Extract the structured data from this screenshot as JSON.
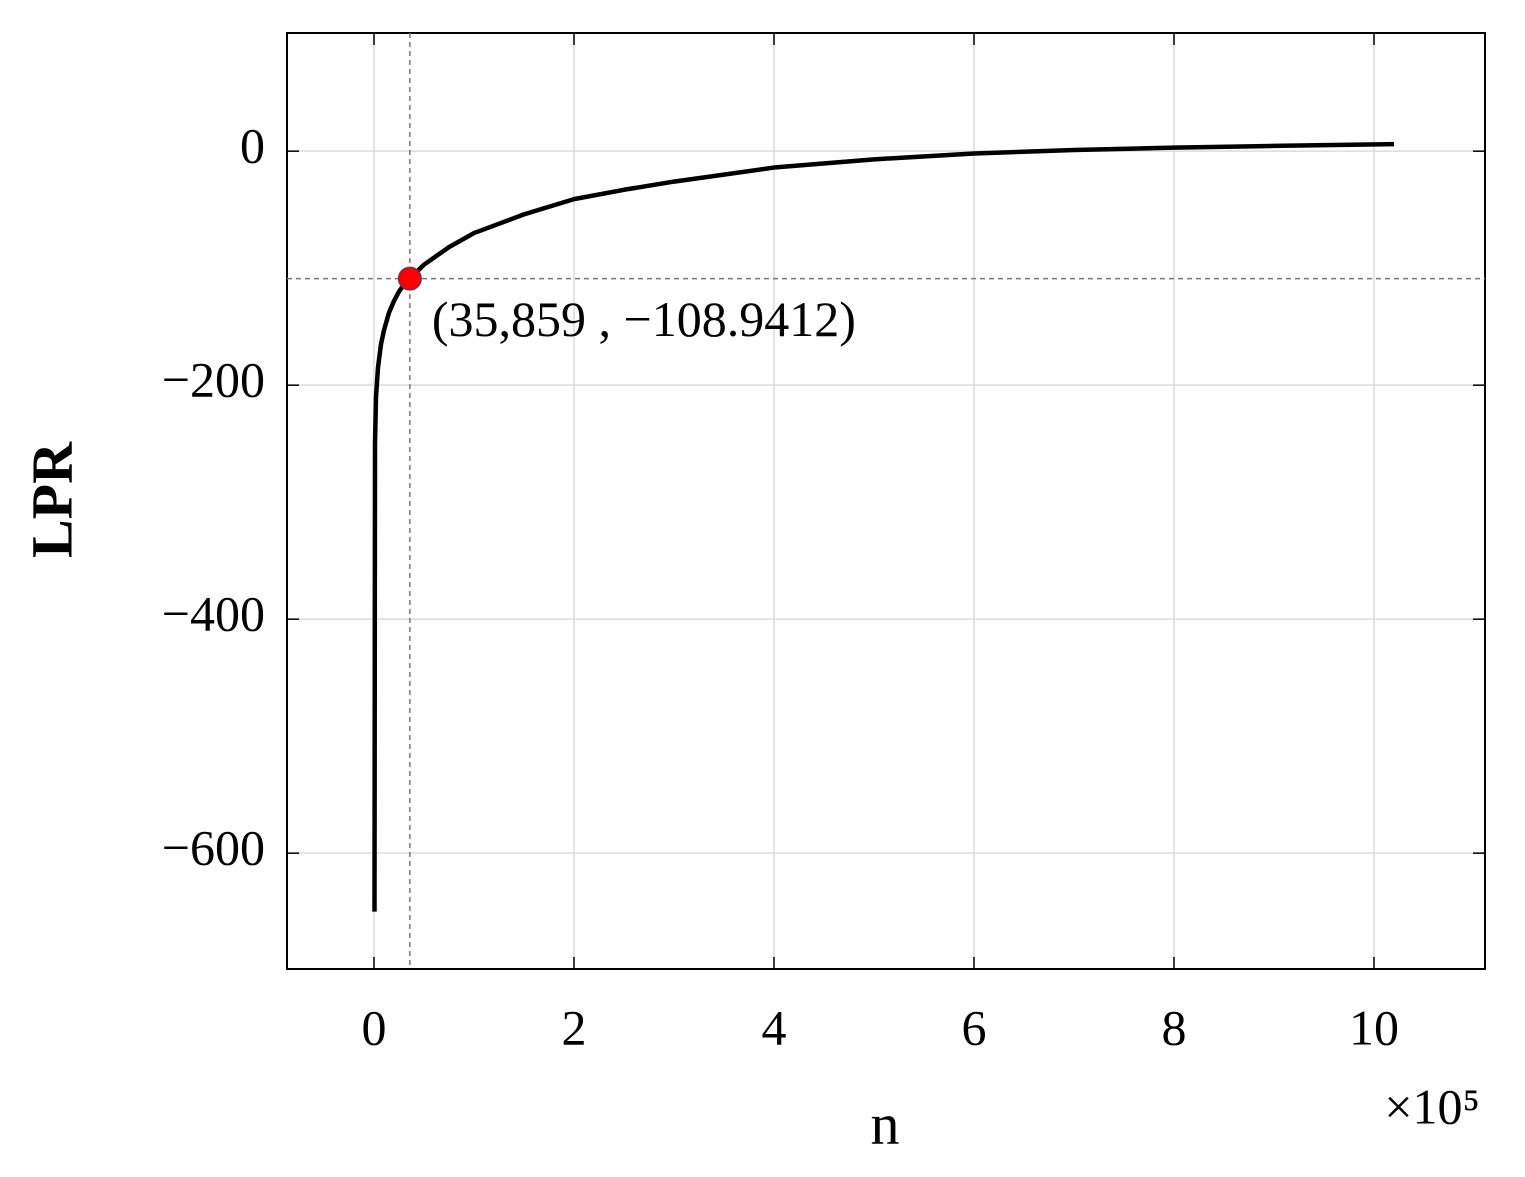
{
  "chart_data": {
    "type": "line",
    "x_label": "n",
    "y_label": "LPR",
    "x_multiplier": "×10⁵",
    "x": [
      0.005,
      0.01,
      0.02,
      0.04,
      0.07,
      0.1,
      0.15,
      0.2,
      0.25,
      0.3,
      0.35859,
      0.5,
      0.75,
      1.0,
      1.5,
      2.0,
      2.5,
      3.0,
      4.0,
      5.0,
      6.0,
      7.0,
      8.0,
      9.0,
      10.2
    ],
    "series": [
      {
        "color": "#000000",
        "values": [
          -650,
          -250,
          -210,
          -185,
          -165,
          -153,
          -138,
          -128,
          -120,
          -114,
          -108.9412,
          -97,
          -82,
          -70,
          -54,
          -41,
          -33,
          -26,
          -14,
          -7,
          -2,
          1,
          3,
          4.5,
          6
        ]
      }
    ],
    "highlight": {
      "x": 0.35859,
      "y": -108.9412,
      "label": "(35,859 , −108.9412)",
      "color": "#ff0000"
    },
    "xlim": [
      -0.87,
      11.11
    ],
    "ylim": [
      -699,
      101
    ],
    "xticks": [
      0,
      2,
      4,
      6,
      8,
      10
    ],
    "yticks": [
      {
        "value": -600,
        "label": "−600"
      },
      {
        "value": -400,
        "label": "−400"
      },
      {
        "value": -200,
        "label": "−200"
      },
      0
    ],
    "grid": true
  }
}
